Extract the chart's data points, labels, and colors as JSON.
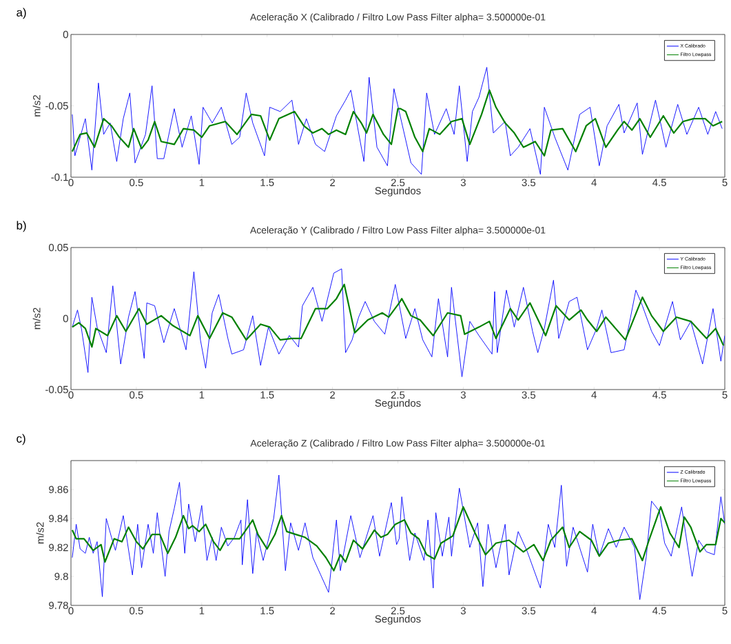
{
  "chart_data": [
    {
      "type": "line",
      "title": "Aceleração X (Calibrado / Filtro Low Pass Filter alpha= 3.500000e-01",
      "xlabel": "Segundos",
      "ylabel": "m/s2",
      "annotations": [
        "a)"
      ],
      "legend": "top right",
      "xlim": [
        0,
        5
      ],
      "xticks": [
        0,
        0.5,
        1,
        1.5,
        2,
        2.5,
        3,
        3.5,
        4,
        4.5,
        5
      ],
      "ylim": [
        -0.1,
        0
      ],
      "yticks": [
        -0.1,
        -0.05,
        0
      ],
      "series": [
        {
          "name": "X Calibrado",
          "color": "#0000ff",
          "x": [
            0.01,
            0.03,
            0.11,
            0.16,
            0.21,
            0.25,
            0.3,
            0.35,
            0.4,
            0.45,
            0.49,
            0.57,
            0.62,
            0.66,
            0.71,
            0.79,
            0.85,
            0.92,
            0.98,
            1.01,
            1.08,
            1.15,
            1.23,
            1.29,
            1.34,
            1.39,
            1.48,
            1.52,
            1.6,
            1.69,
            1.74,
            1.8,
            1.87,
            1.94,
            2.03,
            2.1,
            2.14,
            2.24,
            2.28,
            2.34,
            2.42,
            2.47,
            2.6,
            2.68,
            2.72,
            2.78,
            2.87,
            2.93,
            2.97,
            3.03,
            3.07,
            3.12,
            3.18,
            3.23,
            3.32,
            3.36,
            3.42,
            3.51,
            3.59,
            3.62,
            3.7,
            3.8,
            3.89,
            3.97,
            4.04,
            4.1,
            4.19,
            4.23,
            4.33,
            4.37,
            4.47,
            4.55,
            4.64,
            4.71,
            4.8,
            4.87,
            4.93,
            4.98
          ],
          "values": [
            -0.056,
            -0.085,
            -0.059,
            -0.095,
            -0.034,
            -0.07,
            -0.062,
            -0.089,
            -0.059,
            -0.041,
            -0.09,
            -0.07,
            -0.036,
            -0.087,
            -0.087,
            -0.052,
            -0.079,
            -0.057,
            -0.091,
            -0.051,
            -0.062,
            -0.051,
            -0.077,
            -0.072,
            -0.041,
            -0.062,
            -0.085,
            -0.051,
            -0.054,
            -0.046,
            -0.077,
            -0.059,
            -0.077,
            -0.082,
            -0.057,
            -0.046,
            -0.039,
            -0.089,
            -0.03,
            -0.079,
            -0.092,
            -0.038,
            -0.09,
            -0.098,
            -0.041,
            -0.07,
            -0.052,
            -0.07,
            -0.036,
            -0.089,
            -0.054,
            -0.044,
            -0.023,
            -0.069,
            -0.061,
            -0.085,
            -0.079,
            -0.066,
            -0.098,
            -0.051,
            -0.072,
            -0.095,
            -0.056,
            -0.051,
            -0.092,
            -0.064,
            -0.049,
            -0.069,
            -0.048,
            -0.084,
            -0.046,
            -0.079,
            -0.049,
            -0.07,
            -0.051,
            -0.07,
            -0.054,
            -0.066
          ]
        },
        {
          "name": "Filtro Lowpass",
          "color": "#008000",
          "x": [
            0.01,
            0.07,
            0.12,
            0.18,
            0.25,
            0.31,
            0.37,
            0.44,
            0.48,
            0.54,
            0.59,
            0.64,
            0.69,
            0.79,
            0.86,
            0.94,
            1.0,
            1.06,
            1.18,
            1.27,
            1.38,
            1.45,
            1.52,
            1.59,
            1.71,
            1.78,
            1.85,
            1.92,
            1.97,
            2.03,
            2.1,
            2.16,
            2.22,
            2.26,
            2.31,
            2.39,
            2.45,
            2.5,
            2.52,
            2.56,
            2.63,
            2.69,
            2.74,
            2.82,
            2.91,
            2.99,
            3.05,
            3.14,
            3.2,
            3.25,
            3.32,
            3.39,
            3.46,
            3.55,
            3.62,
            3.67,
            3.76,
            3.86,
            3.94,
            4.01,
            4.09,
            4.18,
            4.23,
            4.29,
            4.35,
            4.43,
            4.53,
            4.61,
            4.68,
            4.76,
            4.85,
            4.91,
            4.98
          ],
          "values": [
            -0.082,
            -0.07,
            -0.069,
            -0.079,
            -0.059,
            -0.064,
            -0.072,
            -0.079,
            -0.066,
            -0.08,
            -0.074,
            -0.061,
            -0.075,
            -0.077,
            -0.066,
            -0.067,
            -0.072,
            -0.064,
            -0.061,
            -0.07,
            -0.056,
            -0.057,
            -0.074,
            -0.059,
            -0.054,
            -0.064,
            -0.069,
            -0.066,
            -0.07,
            -0.067,
            -0.07,
            -0.054,
            -0.062,
            -0.069,
            -0.056,
            -0.07,
            -0.077,
            -0.052,
            -0.052,
            -0.054,
            -0.072,
            -0.082,
            -0.066,
            -0.07,
            -0.061,
            -0.059,
            -0.077,
            -0.056,
            -0.039,
            -0.051,
            -0.062,
            -0.069,
            -0.079,
            -0.075,
            -0.085,
            -0.067,
            -0.066,
            -0.082,
            -0.064,
            -0.059,
            -0.079,
            -0.067,
            -0.061,
            -0.067,
            -0.059,
            -0.072,
            -0.057,
            -0.069,
            -0.061,
            -0.059,
            -0.059,
            -0.064,
            -0.061
          ]
        }
      ]
    },
    {
      "type": "line",
      "title": "Aceleração Y (Calibrado / Filtro Low Pass Filter alpha= 3.500000e-01",
      "xlabel": "Segundos",
      "ylabel": "m/s2",
      "annotations": [
        "b)"
      ],
      "legend": "top right",
      "xlim": [
        0,
        5
      ],
      "xticks": [
        0,
        0.5,
        1,
        1.5,
        2,
        2.5,
        3,
        3.5,
        4,
        4.5,
        5
      ],
      "ylim": [
        -0.05,
        0.05
      ],
      "yticks": [
        -0.05,
        0,
        0.05
      ],
      "series": [
        {
          "name": "Y Calibrado",
          "color": "#0000ff",
          "x": [
            0.01,
            0.05,
            0.08,
            0.13,
            0.16,
            0.2,
            0.27,
            0.32,
            0.38,
            0.44,
            0.49,
            0.56,
            0.58,
            0.64,
            0.71,
            0.79,
            0.88,
            0.94,
            0.99,
            1.03,
            1.08,
            1.13,
            1.2,
            1.23,
            1.32,
            1.39,
            1.45,
            1.51,
            1.59,
            1.67,
            1.74,
            1.77,
            1.85,
            1.92,
            2.01,
            2.07,
            2.1,
            2.15,
            2.2,
            2.25,
            2.32,
            2.4,
            2.48,
            2.56,
            2.63,
            2.69,
            2.76,
            2.81,
            2.88,
            2.91,
            2.99,
            3.05,
            3.12,
            3.22,
            3.24,
            3.26,
            3.33,
            3.39,
            3.46,
            3.53,
            3.57,
            3.62,
            3.69,
            3.73,
            3.81,
            3.87,
            3.95,
            4.02,
            4.06,
            4.13,
            4.23,
            4.32,
            4.37,
            4.44,
            4.5,
            4.6,
            4.66,
            4.74,
            4.83,
            4.91,
            4.97,
            5.0
          ],
          "values": [
            -0.006,
            0.006,
            -0.007,
            -0.038,
            0.015,
            -0.006,
            -0.024,
            0.023,
            -0.032,
            0.001,
            0.019,
            -0.028,
            0.011,
            0.009,
            -0.017,
            0.007,
            -0.022,
            0.033,
            -0.015,
            -0.035,
            0.004,
            0.017,
            -0.014,
            -0.025,
            -0.022,
            0.002,
            -0.033,
            -0.006,
            -0.025,
            -0.012,
            -0.02,
            0.009,
            0.022,
            -0.002,
            0.032,
            0.035,
            -0.024,
            -0.015,
            0.001,
            0.012,
            -0.002,
            -0.011,
            0.024,
            -0.014,
            0.007,
            -0.015,
            -0.027,
            0.014,
            -0.027,
            0.022,
            -0.041,
            -0.002,
            -0.012,
            -0.025,
            0.019,
            -0.024,
            0.02,
            -0.006,
            0.022,
            -0.009,
            -0.024,
            -0.007,
            0.027,
            -0.014,
            0.012,
            0.015,
            -0.022,
            -0.007,
            0.006,
            -0.024,
            -0.022,
            0.02,
            0.009,
            -0.009,
            -0.019,
            0.012,
            -0.015,
            -0.002,
            -0.032,
            0.007,
            -0.03,
            -0.012
          ]
        },
        {
          "name": "Filtro Lowpass",
          "color": "#008000",
          "x": [
            0.01,
            0.06,
            0.11,
            0.16,
            0.19,
            0.28,
            0.35,
            0.42,
            0.52,
            0.58,
            0.69,
            0.78,
            0.91,
            0.97,
            1.06,
            1.16,
            1.23,
            1.34,
            1.45,
            1.52,
            1.6,
            1.69,
            1.76,
            1.87,
            1.96,
            2.03,
            2.09,
            2.17,
            2.27,
            2.38,
            2.43,
            2.51,
            2.53,
            2.6,
            2.67,
            2.77,
            2.88,
            2.98,
            3.01,
            3.12,
            3.2,
            3.25,
            3.36,
            3.42,
            3.51,
            3.63,
            3.71,
            3.81,
            3.9,
            3.95,
            4.02,
            4.09,
            4.24,
            4.37,
            4.44,
            4.53,
            4.63,
            4.74,
            4.86,
            4.93,
            4.99
          ],
          "values": [
            -0.006,
            -0.003,
            -0.007,
            -0.02,
            -0.007,
            -0.012,
            0.002,
            -0.009,
            0.007,
            -0.004,
            0.002,
            -0.005,
            -0.012,
            0.002,
            -0.014,
            0.004,
            0.001,
            -0.015,
            -0.004,
            -0.006,
            -0.015,
            -0.014,
            -0.014,
            0.007,
            0.007,
            0.014,
            0.024,
            -0.01,
            -0.001,
            0.004,
            0.001,
            0.011,
            0.014,
            0.002,
            -0.001,
            -0.012,
            0.004,
            0.002,
            -0.011,
            -0.006,
            -0.002,
            -0.014,
            0.007,
            -0.001,
            0.011,
            -0.012,
            0.009,
            -0.001,
            0.006,
            -0.001,
            -0.009,
            0.001,
            -0.015,
            0.015,
            0.002,
            -0.009,
            0.001,
            -0.002,
            -0.014,
            -0.007,
            -0.019
          ]
        }
      ]
    },
    {
      "type": "line",
      "title": "Aceleração Z (Calibrado / Filtro Low Pass Filter alpha= 3.500000e-01",
      "xlabel": "Segundos",
      "ylabel": "m/s2",
      "annotations": [
        "c)"
      ],
      "legend": "top right",
      "xlim": [
        0,
        5
      ],
      "xticks": [
        0,
        0.5,
        1,
        1.5,
        2,
        2.5,
        3,
        3.5,
        4,
        4.5,
        5
      ],
      "ylim": [
        9.78,
        9.88
      ],
      "yticks": [
        9.78,
        9.8,
        9.82,
        9.84,
        9.86
      ],
      "series": [
        {
          "name": "Z Calibrado",
          "color": "#0000ff",
          "x": [
            0.01,
            0.04,
            0.07,
            0.11,
            0.14,
            0.17,
            0.2,
            0.24,
            0.27,
            0.31,
            0.34,
            0.4,
            0.47,
            0.51,
            0.54,
            0.59,
            0.63,
            0.66,
            0.72,
            0.75,
            0.79,
            0.83,
            0.87,
            0.9,
            0.95,
            1.0,
            1.04,
            1.08,
            1.11,
            1.15,
            1.2,
            1.25,
            1.3,
            1.31,
            1.35,
            1.39,
            1.42,
            1.47,
            1.55,
            1.59,
            1.64,
            1.68,
            1.74,
            1.79,
            1.85,
            1.91,
            1.97,
            2.03,
            2.06,
            2.14,
            2.21,
            2.31,
            2.36,
            2.45,
            2.49,
            2.51,
            2.53,
            2.59,
            2.63,
            2.7,
            2.73,
            2.77,
            2.79,
            2.84,
            2.89,
            2.91,
            2.97,
            3.05,
            3.11,
            3.15,
            3.19,
            3.25,
            3.32,
            3.35,
            3.42,
            3.49,
            3.59,
            3.65,
            3.7,
            3.75,
            3.79,
            3.84,
            3.95,
            3.99,
            4.04,
            4.11,
            4.17,
            4.23,
            4.31,
            4.35,
            4.4,
            4.44,
            4.5,
            4.54,
            4.59,
            4.67,
            4.75,
            4.8,
            4.86,
            4.92,
            4.97,
            5.0
          ],
          "values": [
            9.813,
            9.836,
            9.819,
            9.816,
            9.827,
            9.816,
            9.824,
            9.786,
            9.84,
            9.827,
            9.818,
            9.842,
            9.801,
            9.836,
            9.806,
            9.836,
            9.816,
            9.844,
            9.8,
            9.831,
            9.847,
            9.865,
            9.816,
            9.85,
            9.824,
            9.849,
            9.811,
            9.827,
            9.811,
            9.834,
            9.821,
            9.827,
            9.839,
            9.808,
            9.853,
            9.802,
            9.831,
            9.811,
            9.84,
            9.87,
            9.804,
            9.837,
            9.818,
            9.837,
            9.813,
            9.801,
            9.789,
            9.839,
            9.804,
            9.842,
            9.813,
            9.842,
            9.814,
            9.851,
            9.822,
            9.826,
            9.855,
            9.811,
            9.83,
            9.811,
            9.839,
            9.792,
            9.844,
            9.814,
            9.841,
            9.814,
            9.861,
            9.82,
            9.837,
            9.793,
            9.836,
            9.806,
            9.836,
            9.801,
            9.831,
            9.817,
            9.792,
            9.836,
            9.82,
            9.863,
            9.807,
            9.834,
            9.803,
            9.836,
            9.814,
            9.833,
            9.82,
            9.834,
            9.82,
            9.784,
            9.814,
            9.852,
            9.845,
            9.823,
            9.814,
            9.848,
            9.8,
            9.825,
            9.817,
            9.815,
            9.855,
            9.836
          ]
        },
        {
          "name": "Filtro Lowpass",
          "color": "#008000",
          "x": [
            0.01,
            0.04,
            0.1,
            0.17,
            0.23,
            0.26,
            0.33,
            0.39,
            0.44,
            0.5,
            0.55,
            0.62,
            0.68,
            0.74,
            0.8,
            0.86,
            0.9,
            0.93,
            0.98,
            1.03,
            1.09,
            1.14,
            1.19,
            1.29,
            1.33,
            1.39,
            1.43,
            1.5,
            1.56,
            1.61,
            1.65,
            1.72,
            1.79,
            1.88,
            1.95,
            2.01,
            2.06,
            2.1,
            2.16,
            2.23,
            2.32,
            2.37,
            2.42,
            2.48,
            2.55,
            2.6,
            2.66,
            2.72,
            2.78,
            2.83,
            2.92,
            3.0,
            3.09,
            3.17,
            3.25,
            3.35,
            3.46,
            3.54,
            3.61,
            3.67,
            3.76,
            3.81,
            3.89,
            3.98,
            4.04,
            4.11,
            4.19,
            4.29,
            4.37,
            4.42,
            4.51,
            4.58,
            4.65,
            4.69,
            4.74,
            4.81,
            4.86,
            4.93,
            4.97,
            5.0
          ],
          "values": [
            9.832,
            9.826,
            9.826,
            9.818,
            9.822,
            9.81,
            9.826,
            9.824,
            9.834,
            9.824,
            9.819,
            9.829,
            9.829,
            9.816,
            9.827,
            9.842,
            9.833,
            9.835,
            9.831,
            9.836,
            9.824,
            9.818,
            9.826,
            9.826,
            9.831,
            9.839,
            9.829,
            9.819,
            9.829,
            9.842,
            9.831,
            9.829,
            9.827,
            9.821,
            9.813,
            9.804,
            9.815,
            9.81,
            9.825,
            9.819,
            9.832,
            9.827,
            9.829,
            9.836,
            9.839,
            9.83,
            9.826,
            9.815,
            9.812,
            9.823,
            9.828,
            9.848,
            9.83,
            9.815,
            9.823,
            9.825,
            9.817,
            9.822,
            9.811,
            9.825,
            9.834,
            9.82,
            9.831,
            9.825,
            9.814,
            9.823,
            9.825,
            9.826,
            9.811,
            9.825,
            9.848,
            9.83,
            9.82,
            9.841,
            9.834,
            9.817,
            9.822,
            9.822,
            9.84,
            9.837
          ]
        }
      ]
    }
  ]
}
